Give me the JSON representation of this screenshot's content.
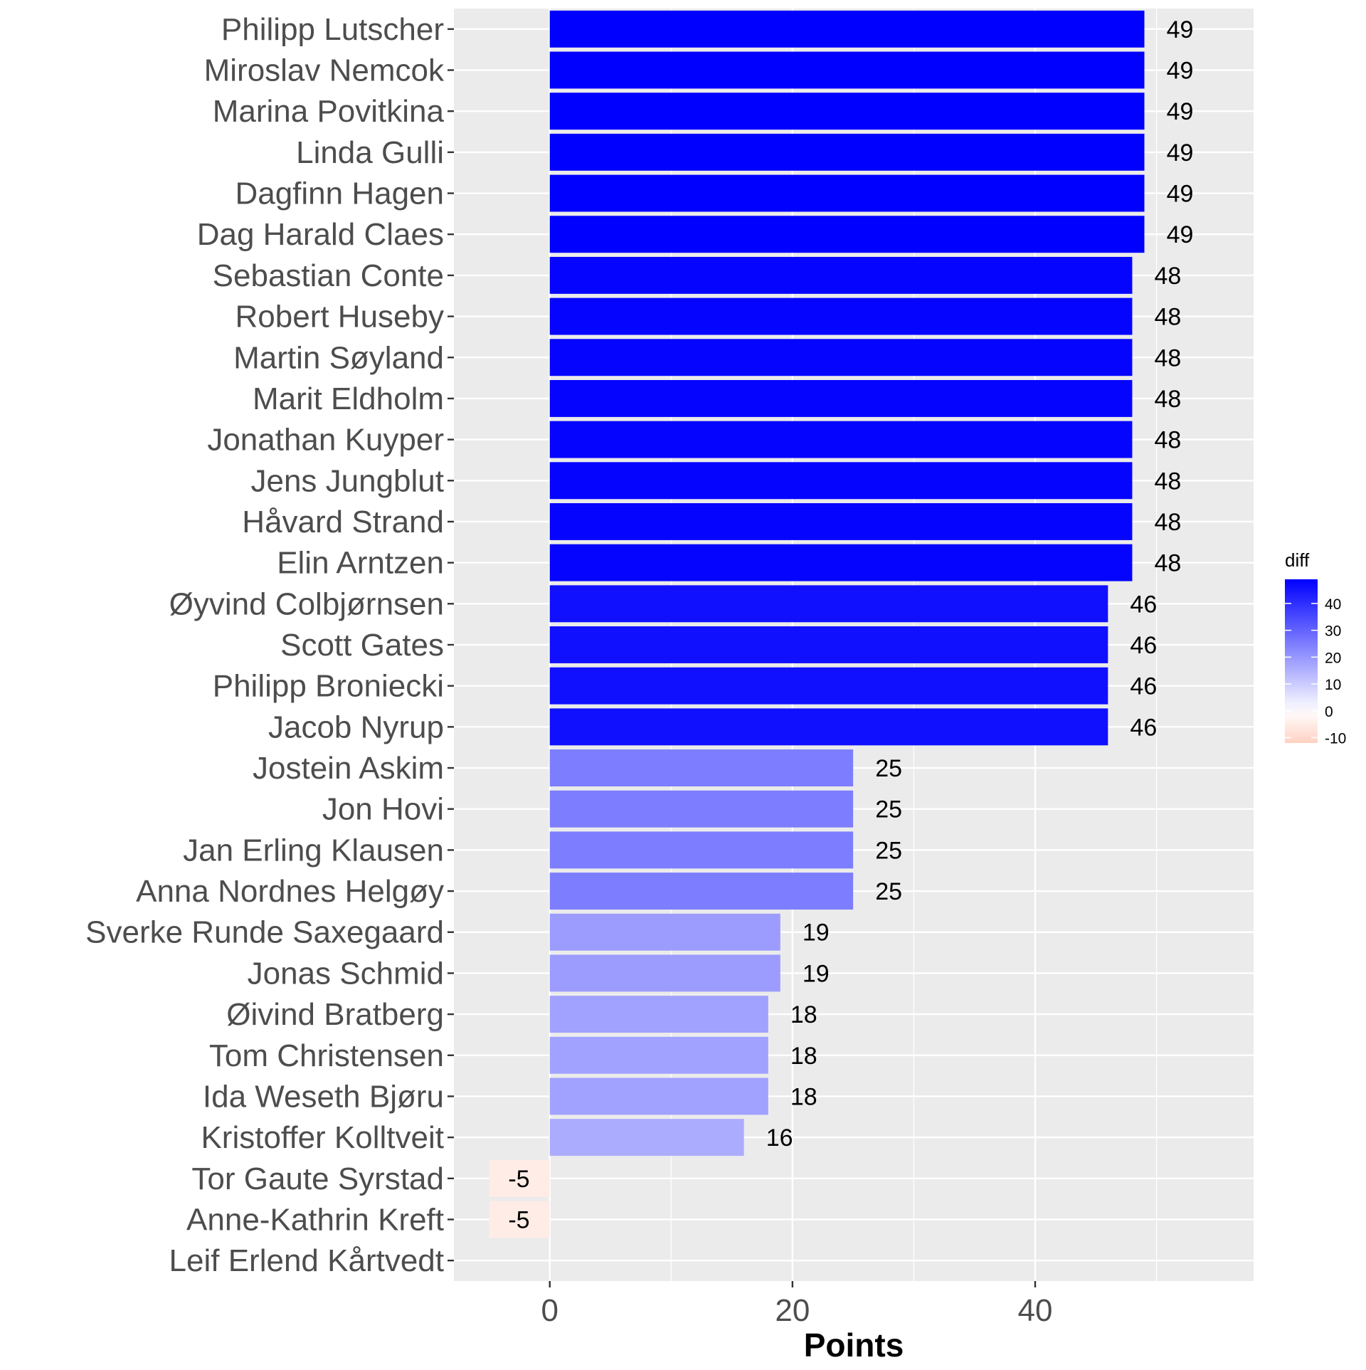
{
  "chart_data": {
    "type": "bar",
    "orientation": "horizontal",
    "categories": [
      "Philipp Lutscher",
      "Miroslav Nemcok",
      "Marina Povitkina",
      "Linda Gulli",
      "Dagfinn Hagen",
      "Dag Harald Claes",
      "Sebastian Conte",
      "Robert Huseby",
      "Martin Søyland",
      "Marit Eldholm",
      "Jonathan Kuyper",
      "Jens Jungblut",
      "Håvard Strand",
      "Elin Arntzen",
      "Øyvind Colbjørnsen",
      "Scott Gates",
      "Philipp Broniecki",
      "Jacob Nyrup",
      "Jostein Askim",
      "Jon Hovi",
      "Jan Erling Klausen",
      "Anna Nordnes Helgøy",
      "Sverke Runde Saxegaard",
      "Jonas Schmid",
      "Øivind Bratberg",
      "Tom Christensen",
      "Ida Weseth Bjøru",
      "Kristoffer Kolltveit",
      "Tor Gaute Syrstad",
      "Anne-Kathrin Kreft",
      "Leif Erlend Kårtvedt"
    ],
    "values": [
      49,
      49,
      49,
      49,
      49,
      49,
      48,
      48,
      48,
      48,
      48,
      48,
      48,
      48,
      46,
      46,
      46,
      46,
      25,
      25,
      25,
      25,
      19,
      19,
      18,
      18,
      18,
      16,
      -5,
      -5,
      0
    ],
    "data_labels": [
      "49",
      "49",
      "49",
      "49",
      "49",
      "49",
      "48",
      "48",
      "48",
      "48",
      "48",
      "48",
      "48",
      "48",
      "46",
      "46",
      "46",
      "46",
      "25",
      "25",
      "25",
      "25",
      "19",
      "19",
      "18",
      "18",
      "18",
      "16",
      "-5",
      "-5",
      ""
    ],
    "xlabel": "Points",
    "ylabel": "",
    "xlim": [
      -7.9,
      58
    ],
    "x_ticks": [
      0,
      20,
      40
    ],
    "x_tick_labels": [
      "0",
      "20",
      "40"
    ],
    "x_minor_ticks": [
      -10,
      10,
      30,
      50
    ],
    "grid": true,
    "background": "#ebebeb",
    "fill_scale": {
      "legend_title": "diff",
      "low_color": "#ffd2c2",
      "mid_color": "#ffffff",
      "high_color": "#0000ff",
      "midpoint": 0,
      "limits": [
        -12,
        49
      ],
      "breaks": [
        40,
        30,
        20,
        10,
        0,
        -10
      ],
      "break_labels": [
        "40",
        "30",
        "20",
        "10",
        "0",
        "-10"
      ]
    },
    "legend_position": "right"
  }
}
